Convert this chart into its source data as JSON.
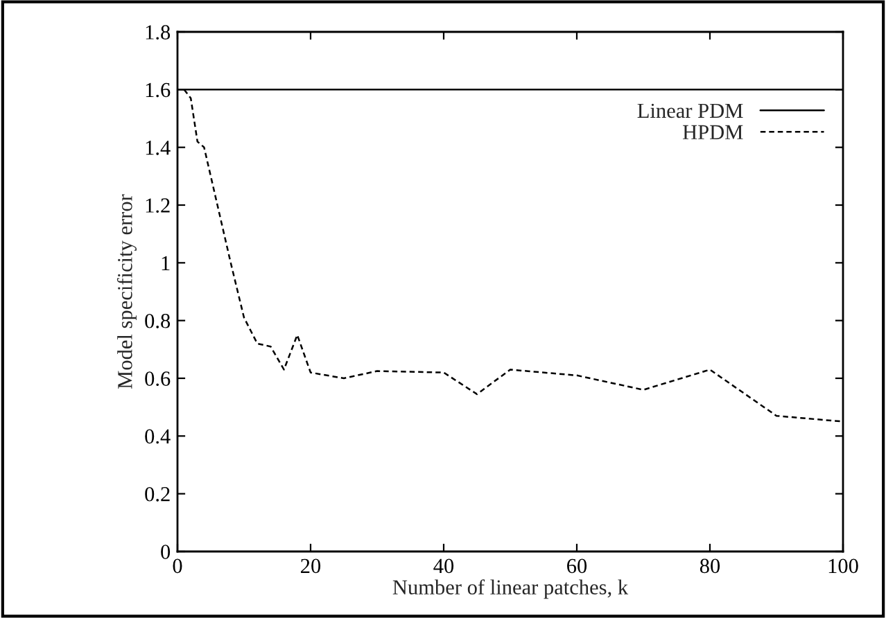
{
  "chart_data": {
    "type": "line",
    "xlabel": "Number of linear patches, k",
    "ylabel": "Model specificity error",
    "xlim": [
      0,
      100
    ],
    "ylim": [
      0,
      1.8
    ],
    "xticks": [
      0,
      20,
      40,
      60,
      80,
      100
    ],
    "yticks": [
      0,
      0.2,
      0.4,
      0.6,
      0.8,
      1,
      1.2,
      1.4,
      1.6,
      1.8
    ],
    "legend": "top right",
    "grid": false,
    "series": [
      {
        "name": "Linear PDM",
        "color": "#000000",
        "line_style": "solid",
        "x": [
          0,
          100
        ],
        "values": [
          1.6,
          1.6
        ]
      },
      {
        "name": "HPDM",
        "color": "#000000",
        "line_style": "dashed",
        "x": [
          1,
          2,
          3,
          4,
          6,
          8,
          10,
          12,
          14,
          16,
          18,
          20,
          25,
          30,
          40,
          45,
          50,
          60,
          70,
          80,
          90,
          100
        ],
        "values": [
          1.6,
          1.57,
          1.42,
          1.4,
          1.2,
          1.0,
          0.81,
          0.72,
          0.71,
          0.63,
          0.75,
          0.62,
          0.6,
          0.625,
          0.62,
          0.545,
          0.63,
          0.61,
          0.56,
          0.63,
          0.47,
          0.45
        ]
      }
    ]
  }
}
